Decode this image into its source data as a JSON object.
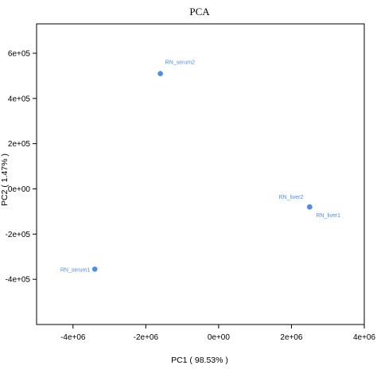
{
  "chart_data": {
    "type": "scatter",
    "title": "PCA",
    "xlabel": "PC1 ( 98.53% )",
    "ylabel": "PC2 ( 1.47% )",
    "xlim": [
      -5000000,
      4000000
    ],
    "ylim": [
      -600000,
      730000
    ],
    "x_ticks": [
      {
        "value": -4000000,
        "label": "-4e+06"
      },
      {
        "value": -2000000,
        "label": "-2e+06"
      },
      {
        "value": 0,
        "label": "0e+00"
      },
      {
        "value": 2000000,
        "label": "2e+06"
      },
      {
        "value": 4000000,
        "label": "4e+06"
      }
    ],
    "y_ticks": [
      {
        "value": -400000,
        "label": "-4e+05"
      },
      {
        "value": -200000,
        "label": "-2e+05"
      },
      {
        "value": 0,
        "label": "0e+00"
      },
      {
        "value": 200000,
        "label": "2e+05"
      },
      {
        "value": 400000,
        "label": "4e+05"
      },
      {
        "value": 600000,
        "label": "6e+05"
      }
    ],
    "grid": false,
    "color": "#4a90e2",
    "points": [
      {
        "label": "RN_serum2",
        "x": -1600000,
        "y": 510000
      },
      {
        "label": "RN_liver2",
        "x": 2500000,
        "y": -80000
      },
      {
        "label": "RN_liver1",
        "x": 2500000,
        "y": -80000
      },
      {
        "label": "RN_serum1",
        "x": -3400000,
        "y": -355000
      }
    ]
  }
}
